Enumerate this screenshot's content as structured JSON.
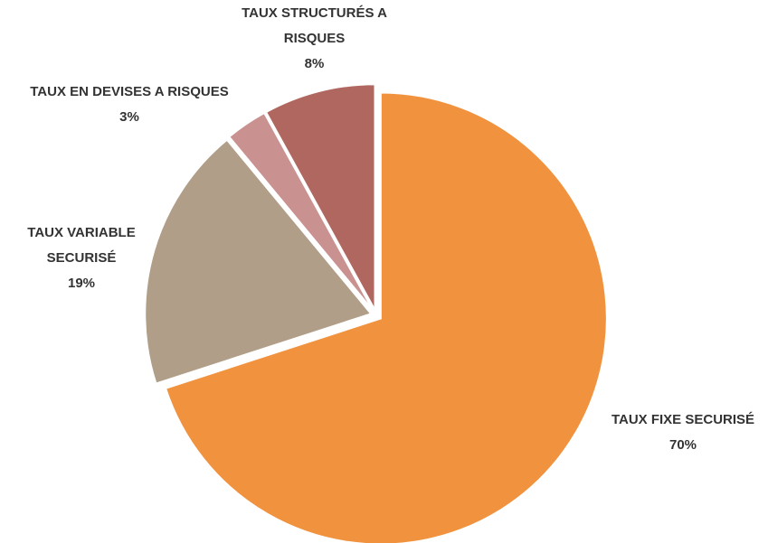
{
  "chart_data": {
    "type": "pie",
    "categories": [
      "TAUX FIXE SECURISÉ",
      "TAUX VARIABLE SECURISÉ",
      "TAUX EN DEVISES A RISQUES",
      "TAUX STRUCTURÉS A RISQUES"
    ],
    "values": [
      70,
      19,
      3,
      8
    ],
    "value_labels": [
      "70%",
      "19%",
      "3%",
      "8%"
    ],
    "colors": [
      "#f0923e",
      "#b09e88",
      "#c9918f",
      "#b0675f"
    ]
  }
}
